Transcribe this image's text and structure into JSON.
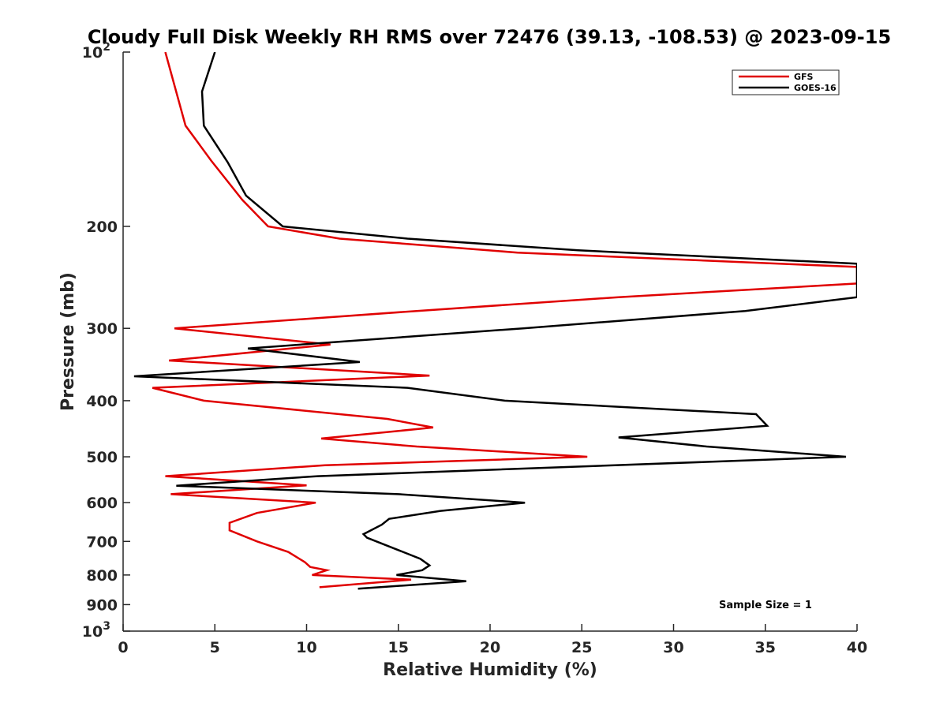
{
  "chart_data": {
    "type": "line",
    "title": "Cloudy Full Disk Weekly RH RMS over 72476 (39.13, -108.53) @ 2023-09-15",
    "xlabel": "Relative Humidity (%)",
    "ylabel": "Pressure (mb)",
    "xlim": [
      0,
      40
    ],
    "ylim": [
      100,
      1000
    ],
    "yscale": "log",
    "y_reversed": true,
    "x_ticks": [
      "0",
      "5",
      "10",
      "15",
      "20",
      "25",
      "30",
      "35",
      "40"
    ],
    "y_ticks": [
      {
        "value": 100,
        "base": "10",
        "exp": "2"
      },
      {
        "value": 200,
        "base": "200",
        "exp": ""
      },
      {
        "value": 300,
        "base": "300",
        "exp": ""
      },
      {
        "value": 400,
        "base": "400",
        "exp": ""
      },
      {
        "value": 500,
        "base": "500",
        "exp": ""
      },
      {
        "value": 600,
        "base": "600",
        "exp": ""
      },
      {
        "value": 700,
        "base": "700",
        "exp": ""
      },
      {
        "value": 800,
        "base": "800",
        "exp": ""
      },
      {
        "value": 900,
        "base": "900",
        "exp": ""
      },
      {
        "value": 1000,
        "base": "10",
        "exp": "3"
      }
    ],
    "legend_position": "top-right",
    "grid": false,
    "series": [
      {
        "name": "GFS",
        "color": "#e00000",
        "points": [
          [
            2.3,
            100
          ],
          [
            3.4,
            134
          ],
          [
            4.8,
            154
          ],
          [
            6.5,
            180
          ],
          [
            7.9,
            200
          ],
          [
            11.8,
            210
          ],
          [
            21.5,
            222
          ],
          [
            40.0,
            235
          ],
          [
            40.0,
            251
          ],
          [
            27.0,
            265
          ],
          [
            16.0,
            280
          ],
          [
            2.8,
            300
          ],
          [
            11.3,
            320
          ],
          [
            2.5,
            341
          ],
          [
            16.7,
            362
          ],
          [
            1.6,
            380
          ],
          [
            4.4,
            400
          ],
          [
            14.4,
            430
          ],
          [
            16.9,
            445
          ],
          [
            10.8,
            465
          ],
          [
            16.0,
            480
          ],
          [
            25.3,
            500
          ],
          [
            11.0,
            517
          ],
          [
            2.3,
            540
          ],
          [
            10.0,
            560
          ],
          [
            2.6,
            580
          ],
          [
            10.5,
            600
          ],
          [
            7.3,
            625
          ],
          [
            5.8,
            650
          ],
          [
            5.8,
            670
          ],
          [
            7.3,
            700
          ],
          [
            9.0,
            730
          ],
          [
            9.9,
            760
          ],
          [
            10.2,
            775
          ],
          [
            11.1,
            785
          ],
          [
            10.3,
            800
          ],
          [
            15.7,
            815
          ],
          [
            10.7,
            840
          ]
        ]
      },
      {
        "name": "GOES-16",
        "color": "#000000",
        "points": [
          [
            5.0,
            100
          ],
          [
            4.3,
            117
          ],
          [
            4.4,
            134
          ],
          [
            5.7,
            155
          ],
          [
            6.7,
            177
          ],
          [
            8.7,
            200
          ],
          [
            15.5,
            210
          ],
          [
            24.8,
            220
          ],
          [
            40.0,
            232
          ],
          [
            40.0,
            265
          ],
          [
            33.9,
            280
          ],
          [
            21.8,
            300
          ],
          [
            6.8,
            325
          ],
          [
            12.9,
            343
          ],
          [
            0.6,
            363
          ],
          [
            15.5,
            380
          ],
          [
            20.8,
            400
          ],
          [
            34.5,
            422
          ],
          [
            35.1,
            442
          ],
          [
            27.0,
            463
          ],
          [
            31.8,
            480
          ],
          [
            39.4,
            500
          ],
          [
            10.6,
            540
          ],
          [
            2.9,
            561
          ],
          [
            15.0,
            580
          ],
          [
            21.9,
            600
          ],
          [
            17.3,
            620
          ],
          [
            14.5,
            640
          ],
          [
            14.1,
            655
          ],
          [
            13.1,
            680
          ],
          [
            13.3,
            690
          ],
          [
            16.2,
            750
          ],
          [
            16.7,
            770
          ],
          [
            16.3,
            785
          ],
          [
            14.9,
            800
          ],
          [
            18.7,
            820
          ],
          [
            12.8,
            845
          ]
        ]
      }
    ],
    "annotation": "Sample Size = 1"
  }
}
